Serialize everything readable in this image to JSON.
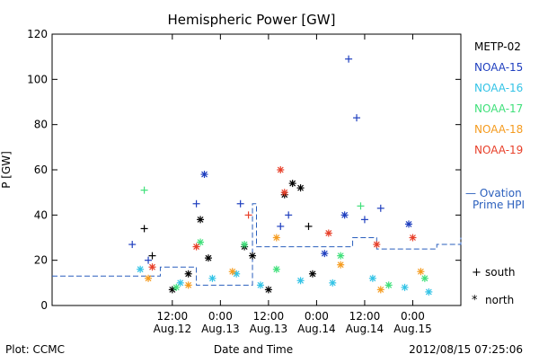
{
  "chart_data": {
    "type": "scatter",
    "title": "Hemispheric Power [GW]",
    "ylabel": "P [GW]",
    "xlabel": "Date and Time",
    "ylim": [
      0,
      120
    ],
    "yticks": [
      0,
      20,
      40,
      60,
      80,
      100,
      120
    ],
    "xlim": [
      "2012-08-11 06:00",
      "2012-08-15 12:00"
    ],
    "xticks": [
      {
        "x": "2012-08-12 12:00",
        "time": "12:00",
        "date": "Aug.12"
      },
      {
        "x": "2012-08-13 00:00",
        "time": "0:00",
        "date": "Aug.13"
      },
      {
        "x": "2012-08-13 12:00",
        "time": "12:00",
        "date": "Aug.13"
      },
      {
        "x": "2012-08-14 00:00",
        "time": "0:00",
        "date": "Aug.14"
      },
      {
        "x": "2012-08-14 12:00",
        "time": "12:00",
        "date": "Aug.14"
      },
      {
        "x": "2012-08-15 00:00",
        "time": "0:00",
        "date": "Aug.15"
      }
    ],
    "series": [
      {
        "name": "METP-02",
        "color": "#000000",
        "points": [
          {
            "x": "2012-08-12 05:00",
            "y": 34,
            "m": "+"
          },
          {
            "x": "2012-08-12 07:00",
            "y": 22,
            "m": "+"
          },
          {
            "x": "2012-08-12 12:00",
            "y": 7,
            "m": "*"
          },
          {
            "x": "2012-08-12 16:00",
            "y": 14,
            "m": "*"
          },
          {
            "x": "2012-08-12 19:00",
            "y": 38,
            "m": "*"
          },
          {
            "x": "2012-08-12 21:00",
            "y": 21,
            "m": "*"
          },
          {
            "x": "2012-08-13 06:00",
            "y": 26,
            "m": "*"
          },
          {
            "x": "2012-08-13 08:00",
            "y": 22,
            "m": "*"
          },
          {
            "x": "2012-08-13 12:00",
            "y": 7,
            "m": "*"
          },
          {
            "x": "2012-08-13 16:00",
            "y": 49,
            "m": "*"
          },
          {
            "x": "2012-08-13 18:00",
            "y": 54,
            "m": "*"
          },
          {
            "x": "2012-08-13 20:00",
            "y": 52,
            "m": "*"
          },
          {
            "x": "2012-08-13 22:00",
            "y": 35,
            "m": "+"
          },
          {
            "x": "2012-08-13 23:00",
            "y": 14,
            "m": "*"
          }
        ]
      },
      {
        "name": "NOAA-15",
        "color": "#1f3fbf",
        "points": [
          {
            "x": "2012-08-12 02:00",
            "y": 27,
            "m": "+"
          },
          {
            "x": "2012-08-12 06:00",
            "y": 20,
            "m": "+"
          },
          {
            "x": "2012-08-12 18:00",
            "y": 45,
            "m": "+"
          },
          {
            "x": "2012-08-12 20:00",
            "y": 58,
            "m": "*"
          },
          {
            "x": "2012-08-13 05:00",
            "y": 45,
            "m": "+"
          },
          {
            "x": "2012-08-13 15:00",
            "y": 35,
            "m": "+"
          },
          {
            "x": "2012-08-13 17:00",
            "y": 40,
            "m": "+"
          },
          {
            "x": "2012-08-14 02:00",
            "y": 23,
            "m": "*"
          },
          {
            "x": "2012-08-14 07:00",
            "y": 40,
            "m": "*"
          },
          {
            "x": "2012-08-14 08:00",
            "y": 109,
            "m": "+"
          },
          {
            "x": "2012-08-14 10:00",
            "y": 83,
            "m": "+"
          },
          {
            "x": "2012-08-14 12:00",
            "y": 38,
            "m": "+"
          },
          {
            "x": "2012-08-14 16:00",
            "y": 43,
            "m": "+"
          },
          {
            "x": "2012-08-14 23:00",
            "y": 36,
            "m": "*"
          }
        ]
      },
      {
        "name": "NOAA-16",
        "color": "#33c3e6",
        "points": [
          {
            "x": "2012-08-12 04:00",
            "y": 16,
            "m": "*"
          },
          {
            "x": "2012-08-12 14:00",
            "y": 10,
            "m": "*"
          },
          {
            "x": "2012-08-12 22:00",
            "y": 12,
            "m": "*"
          },
          {
            "x": "2012-08-13 04:00",
            "y": 14,
            "m": "*"
          },
          {
            "x": "2012-08-13 10:00",
            "y": 9,
            "m": "*"
          },
          {
            "x": "2012-08-13 20:00",
            "y": 11,
            "m": "*"
          },
          {
            "x": "2012-08-14 04:00",
            "y": 10,
            "m": "*"
          },
          {
            "x": "2012-08-14 14:00",
            "y": 12,
            "m": "*"
          },
          {
            "x": "2012-08-14 22:00",
            "y": 8,
            "m": "*"
          },
          {
            "x": "2012-08-15 04:00",
            "y": 6,
            "m": "*"
          }
        ]
      },
      {
        "name": "NOAA-17",
        "color": "#3fe07a",
        "points": [
          {
            "x": "2012-08-12 05:00",
            "y": 51,
            "m": "+"
          },
          {
            "x": "2012-08-12 13:00",
            "y": 8,
            "m": "*"
          },
          {
            "x": "2012-08-12 19:00",
            "y": 28,
            "m": "*"
          },
          {
            "x": "2012-08-13 06:00",
            "y": 27,
            "m": "*"
          },
          {
            "x": "2012-08-13 14:00",
            "y": 16,
            "m": "*"
          },
          {
            "x": "2012-08-14 06:00",
            "y": 22,
            "m": "*"
          },
          {
            "x": "2012-08-14 11:00",
            "y": 44,
            "m": "+"
          },
          {
            "x": "2012-08-14 18:00",
            "y": 9,
            "m": "*"
          },
          {
            "x": "2012-08-15 03:00",
            "y": 12,
            "m": "*"
          }
        ]
      },
      {
        "name": "NOAA-18",
        "color": "#f59b1e",
        "points": [
          {
            "x": "2012-08-12 06:00",
            "y": 12,
            "m": "*"
          },
          {
            "x": "2012-08-12 16:00",
            "y": 9,
            "m": "*"
          },
          {
            "x": "2012-08-13 03:00",
            "y": 15,
            "m": "*"
          },
          {
            "x": "2012-08-13 14:00",
            "y": 30,
            "m": "*"
          },
          {
            "x": "2012-08-14 06:00",
            "y": 18,
            "m": "*"
          },
          {
            "x": "2012-08-14 16:00",
            "y": 7,
            "m": "*"
          },
          {
            "x": "2012-08-15 02:00",
            "y": 15,
            "m": "*"
          }
        ]
      },
      {
        "name": "NOAA-19",
        "color": "#e8402a",
        "points": [
          {
            "x": "2012-08-12 07:00",
            "y": 17,
            "m": "*"
          },
          {
            "x": "2012-08-12 18:00",
            "y": 26,
            "m": "*"
          },
          {
            "x": "2012-08-13 07:00",
            "y": 40,
            "m": "+"
          },
          {
            "x": "2012-08-13 15:00",
            "y": 60,
            "m": "*"
          },
          {
            "x": "2012-08-13 16:00",
            "y": 50,
            "m": "*"
          },
          {
            "x": "2012-08-14 03:00",
            "y": 32,
            "m": "*"
          },
          {
            "x": "2012-08-14 15:00",
            "y": 27,
            "m": "*"
          },
          {
            "x": "2012-08-15 00:00",
            "y": 30,
            "m": "*"
          }
        ]
      }
    ],
    "ovation": {
      "label_line1": "— Ovation",
      "label_line2": "Prime HPI",
      "color": "#2a5fbd",
      "points": [
        {
          "x": "2012-08-11 06:00",
          "y": 13
        },
        {
          "x": "2012-08-12 09:00",
          "y": 17
        },
        {
          "x": "2012-08-12 18:00",
          "y": 9
        },
        {
          "x": "2012-08-13 08:00",
          "y": 45
        },
        {
          "x": "2012-08-13 09:00",
          "y": 26
        },
        {
          "x": "2012-08-14 09:00",
          "y": 30
        },
        {
          "x": "2012-08-14 15:00",
          "y": 25
        },
        {
          "x": "2012-08-15 06:00",
          "y": 27
        },
        {
          "x": "2012-08-15 12:00",
          "y": 30
        }
      ]
    },
    "marker_legend": [
      {
        "symbol": "+",
        "label": "south"
      },
      {
        "symbol": "*",
        "label": "north"
      }
    ]
  },
  "footer": {
    "left": "Plot: CCMC",
    "right": "2012/08/15 07:25:06"
  }
}
